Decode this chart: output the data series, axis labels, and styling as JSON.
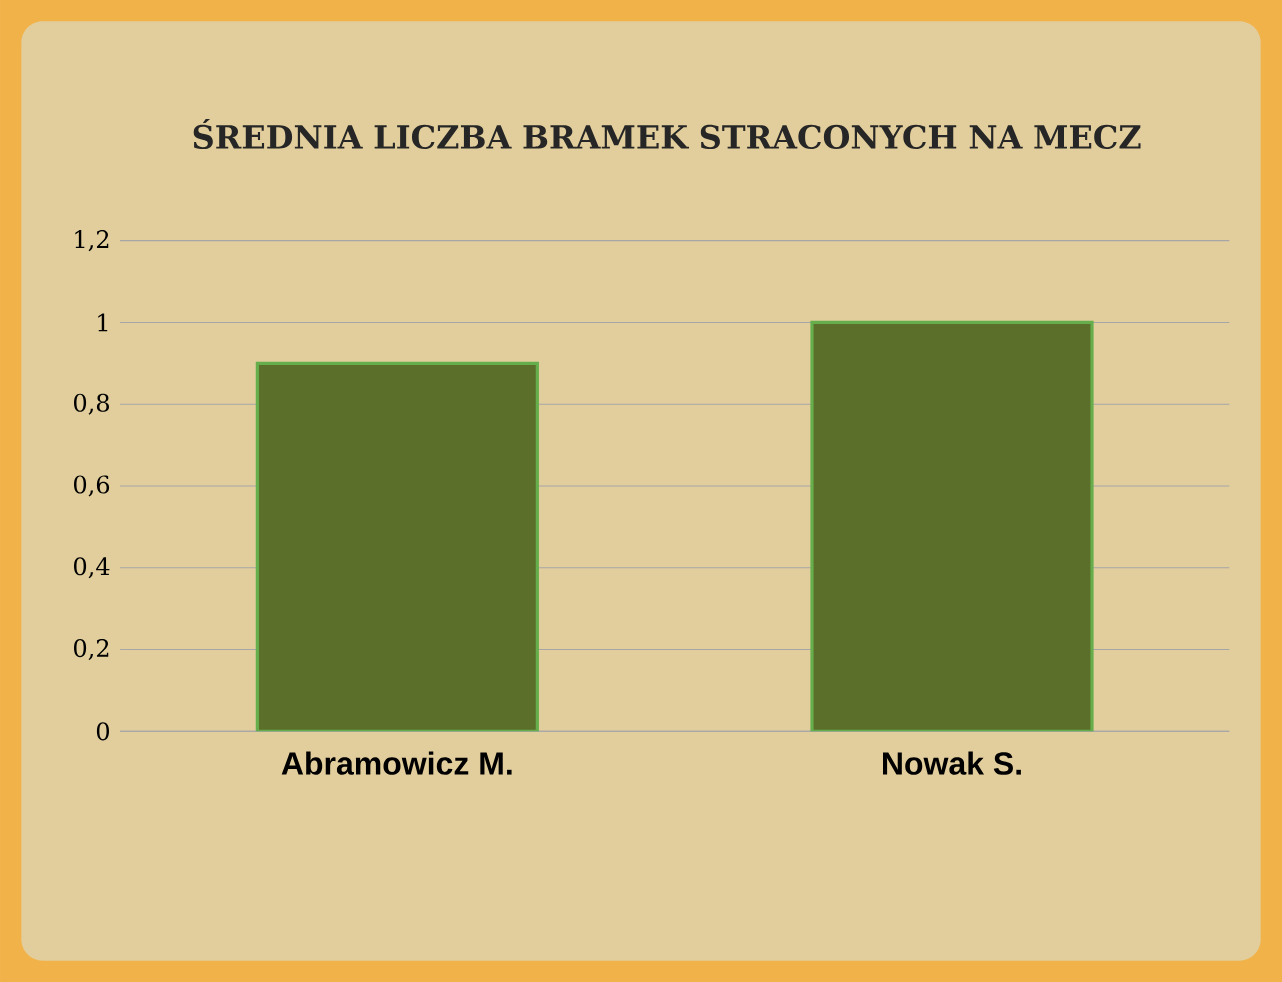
{
  "chart_data": {
    "type": "bar",
    "title": "ŚREDNIA LICZBA BRAMEK STRACONYCH NA MECZ",
    "categories": [
      "Abramowicz M.",
      "Nowak S."
    ],
    "values": [
      0.9,
      1
    ],
    "color": "#5b6e2a",
    "ylim": [
      0,
      1.2
    ],
    "yticks": [
      0,
      {
        "value": 0.2,
        "label": "0,2"
      },
      {
        "value": 0.4,
        "label": "0,4"
      },
      {
        "value": 0.6,
        "label": "0,6"
      },
      {
        "value": 0.8,
        "label": "0,8"
      },
      1,
      {
        "value": 1.2,
        "label": "1,2"
      }
    ],
    "grid": "y"
  }
}
